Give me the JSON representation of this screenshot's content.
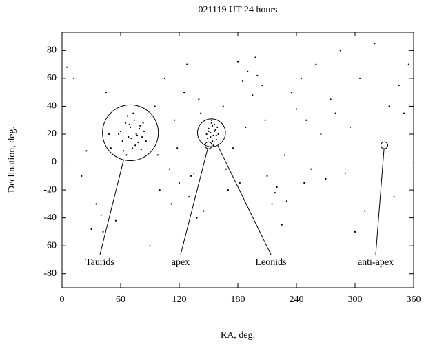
{
  "chart_data": {
    "type": "scatter",
    "title": "021119 UT 24 hours",
    "xlabel": "RA, deg.",
    "ylabel": "Declination, deg.",
    "xlim": [
      0,
      360
    ],
    "xticks": [
      0,
      60,
      120,
      180,
      240,
      300,
      360
    ],
    "ylim": [
      -90,
      93
    ],
    "yticks": [
      -80,
      -60,
      -40,
      -20,
      0,
      20,
      40,
      60,
      80
    ],
    "series": [
      {
        "color": "#000000",
        "x": [
          60,
          62,
          65,
          68,
          70,
          72,
          74,
          76,
          78,
          80,
          82,
          84,
          63,
          67,
          71,
          75,
          79,
          83,
          58,
          86,
          66,
          73,
          77,
          69,
          81,
          148,
          150,
          152,
          154,
          156,
          158,
          160,
          151,
          153,
          155,
          157,
          149,
          159,
          152,
          154,
          156,
          150,
          158,
          153,
          155,
          5,
          12,
          20,
          25,
          30,
          35,
          40,
          45,
          50,
          55,
          90,
          95,
          100,
          105,
          110,
          115,
          120,
          125,
          130,
          135,
          140,
          145,
          165,
          170,
          175,
          180,
          185,
          190,
          195,
          200,
          205,
          210,
          215,
          220,
          225,
          230,
          235,
          240,
          245,
          250,
          255,
          260,
          265,
          270,
          275,
          280,
          285,
          290,
          295,
          300,
          305,
          310,
          320,
          335,
          340,
          345,
          350,
          355,
          42,
          48,
          98,
          112,
          128,
          138,
          168,
          182,
          198,
          208,
          218,
          228,
          118,
          132,
          142,
          188,
          248
        ],
        "values": [
          22,
          15,
          28,
          18,
          25,
          10,
          30,
          20,
          14,
          26,
          18,
          22,
          8,
          33,
          17,
          12,
          24,
          28,
          20,
          15,
          5,
          35,
          19,
          27,
          9,
          20,
          24,
          18,
          26,
          22,
          16,
          20,
          14,
          28,
          19,
          23,
          17,
          25,
          21,
          15,
          27,
          22,
          19,
          30,
          12,
          68,
          60,
          -10,
          8,
          -48,
          -30,
          -38,
          50,
          10,
          -42,
          -60,
          40,
          -20,
          60,
          -5,
          30,
          -15,
          50,
          -25,
          -8,
          45,
          -35,
          40,
          -20,
          10,
          72,
          58,
          65,
          48,
          62,
          55,
          -10,
          -30,
          -18,
          -45,
          -28,
          50,
          38,
          60,
          30,
          -5,
          70,
          20,
          -12,
          45,
          35,
          80,
          -8,
          25,
          -50,
          60,
          -35,
          85,
          40,
          -25,
          55,
          35,
          70,
          -50,
          20,
          5,
          -30,
          70,
          -40,
          -5,
          -15,
          75,
          30,
          -22,
          5,
          10,
          -10,
          35,
          25,
          -15
        ]
      }
    ],
    "annotations": [
      {
        "text": "Taurids",
        "x": 70,
        "y": 21,
        "radius": 20
      },
      {
        "text": "apex",
        "x": 150,
        "y": 12
      },
      {
        "text": "Leonids",
        "x": 153,
        "y": 21,
        "radius": 10
      },
      {
        "text": "anti-apex",
        "x": 330,
        "y": 12
      }
    ]
  }
}
